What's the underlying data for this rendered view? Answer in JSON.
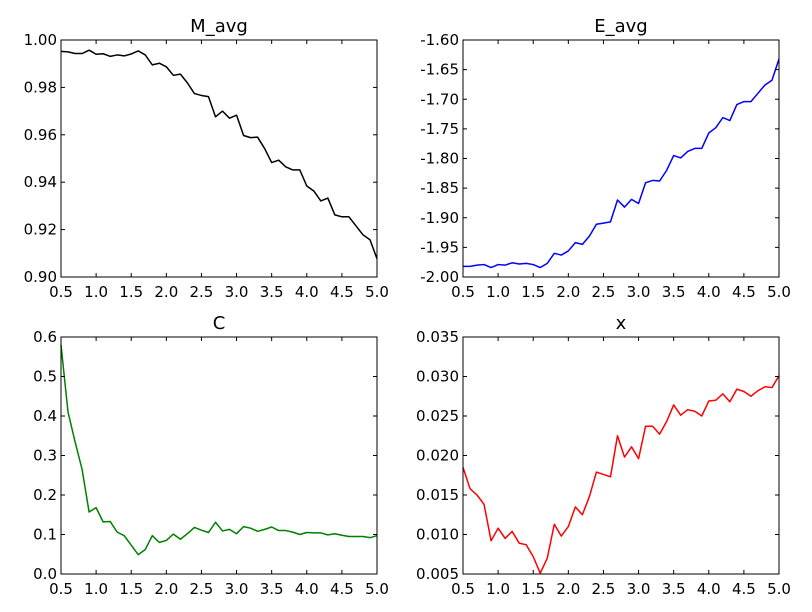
{
  "chart_data": [
    {
      "type": "line",
      "title": "M_avg",
      "xlabel": "",
      "ylabel": "",
      "xlim": [
        0.5,
        5.0
      ],
      "ylim": [
        0.9,
        1.0
      ],
      "xticks": [
        "0.5",
        "1.0",
        "1.5",
        "2.0",
        "2.5",
        "3.0",
        "3.5",
        "4.0",
        "4.5",
        "5.0"
      ],
      "yticks": [
        "0.90",
        "0.92",
        "0.94",
        "0.96",
        "0.98",
        "1.00"
      ],
      "grid": false,
      "color": "#000000",
      "series": [
        {
          "x": [
            0.5,
            0.6,
            0.7,
            0.8,
            0.9,
            1.0,
            1.1,
            1.2,
            1.3,
            1.4,
            1.5,
            1.6,
            1.7,
            1.8,
            1.9,
            2.0,
            2.1,
            2.2,
            2.3,
            2.4,
            2.5,
            2.6,
            2.7,
            2.8,
            2.9,
            3.0,
            3.1,
            3.2,
            3.3,
            3.4,
            3.5,
            3.6,
            3.7,
            3.8,
            3.9,
            4.0,
            4.1,
            4.2,
            4.3,
            4.4,
            4.5,
            4.6,
            4.7,
            4.8,
            4.9,
            5.0
          ],
          "y": [
            0.9952,
            0.995,
            0.9943,
            0.9943,
            0.9957,
            0.994,
            0.9942,
            0.9931,
            0.9937,
            0.9933,
            0.9941,
            0.9954,
            0.9937,
            0.9895,
            0.9902,
            0.9887,
            0.9851,
            0.9856,
            0.9819,
            0.9774,
            0.9766,
            0.9761,
            0.9676,
            0.97,
            0.967,
            0.9683,
            0.9597,
            0.9588,
            0.959,
            0.9542,
            0.9483,
            0.9493,
            0.9465,
            0.9452,
            0.9452,
            0.9384,
            0.9363,
            0.9321,
            0.9333,
            0.9262,
            0.9254,
            0.9254,
            0.9216,
            0.9178,
            0.9157,
            0.9077
          ]
        }
      ]
    },
    {
      "type": "line",
      "title": "E_avg",
      "xlabel": "",
      "ylabel": "",
      "xlim": [
        0.5,
        5.0
      ],
      "ylim": [
        -2.0,
        -1.6
      ],
      "xticks": [
        "0.5",
        "1.0",
        "1.5",
        "2.0",
        "2.5",
        "3.0",
        "3.5",
        "4.0",
        "4.5",
        "5.0"
      ],
      "yticks": [
        "-2.00",
        "-1.95",
        "-1.90",
        "-1.85",
        "-1.80",
        "-1.75",
        "-1.70",
        "-1.65",
        "-1.60"
      ],
      "grid": false,
      "color": "#0000ff",
      "series": [
        {
          "x": [
            0.5,
            0.6,
            0.7,
            0.8,
            0.9,
            1.0,
            1.1,
            1.2,
            1.3,
            1.4,
            1.5,
            1.6,
            1.7,
            1.8,
            1.9,
            2.0,
            2.1,
            2.2,
            2.3,
            2.4,
            2.5,
            2.6,
            2.7,
            2.8,
            2.9,
            3.0,
            3.1,
            3.2,
            3.3,
            3.4,
            3.5,
            3.6,
            3.7,
            3.8,
            3.9,
            4.0,
            4.1,
            4.2,
            4.3,
            4.4,
            4.5,
            4.6,
            4.7,
            4.8,
            4.9,
            5.0
          ],
          "y": [
            -1.982,
            -1.982,
            -1.98,
            -1.979,
            -1.984,
            -1.979,
            -1.98,
            -1.976,
            -1.978,
            -1.977,
            -1.979,
            -1.984,
            -1.977,
            -1.96,
            -1.963,
            -1.956,
            -1.942,
            -1.945,
            -1.931,
            -1.911,
            -1.909,
            -1.907,
            -1.87,
            -1.882,
            -1.869,
            -1.876,
            -1.841,
            -1.837,
            -1.838,
            -1.82,
            -1.795,
            -1.799,
            -1.788,
            -1.783,
            -1.783,
            -1.757,
            -1.748,
            -1.731,
            -1.736,
            -1.709,
            -1.704,
            -1.704,
            -1.69,
            -1.676,
            -1.668,
            -1.632
          ]
        }
      ]
    },
    {
      "type": "line",
      "title": "C",
      "xlabel": "",
      "ylabel": "",
      "xlim": [
        0.5,
        5.0
      ],
      "ylim": [
        0.0,
        0.6
      ],
      "xticks": [
        "0.5",
        "1.0",
        "1.5",
        "2.0",
        "2.5",
        "3.0",
        "3.5",
        "4.0",
        "4.5",
        "5.0"
      ],
      "yticks": [
        "0.0",
        "0.1",
        "0.2",
        "0.3",
        "0.4",
        "0.5",
        "0.6"
      ],
      "grid": false,
      "color": "#008000",
      "series": [
        {
          "x": [
            0.5,
            0.6,
            0.7,
            0.8,
            0.9,
            1.0,
            1.1,
            1.2,
            1.3,
            1.4,
            1.5,
            1.6,
            1.7,
            1.8,
            1.9,
            2.0,
            2.1,
            2.2,
            2.3,
            2.4,
            2.5,
            2.6,
            2.7,
            2.8,
            2.9,
            3.0,
            3.1,
            3.2,
            3.3,
            3.4,
            3.5,
            3.6,
            3.7,
            3.8,
            3.9,
            4.0,
            4.1,
            4.2,
            4.3,
            4.4,
            4.5,
            4.6,
            4.7,
            4.8,
            4.9,
            5.0
          ],
          "y": [
            0.58,
            0.41,
            0.335,
            0.265,
            0.157,
            0.168,
            0.132,
            0.133,
            0.106,
            0.097,
            0.073,
            0.049,
            0.062,
            0.097,
            0.08,
            0.085,
            0.101,
            0.088,
            0.102,
            0.118,
            0.111,
            0.105,
            0.131,
            0.109,
            0.113,
            0.102,
            0.12,
            0.116,
            0.108,
            0.113,
            0.119,
            0.11,
            0.11,
            0.106,
            0.1,
            0.105,
            0.104,
            0.104,
            0.099,
            0.102,
            0.098,
            0.095,
            0.095,
            0.095,
            0.092,
            0.097
          ]
        }
      ]
    },
    {
      "type": "line",
      "title": "x",
      "xlabel": "",
      "ylabel": "",
      "xlim": [
        0.5,
        5.0
      ],
      "ylim": [
        0.005,
        0.035
      ],
      "xticks": [
        "0.5",
        "1.0",
        "1.5",
        "2.0",
        "2.5",
        "3.0",
        "3.5",
        "4.0",
        "4.5",
        "5.0"
      ],
      "yticks": [
        "0.005",
        "0.010",
        "0.015",
        "0.020",
        "0.025",
        "0.030",
        "0.035"
      ],
      "grid": false,
      "color": "#ff0000",
      "series": [
        {
          "x": [
            0.5,
            0.6,
            0.7,
            0.8,
            0.9,
            1.0,
            1.1,
            1.2,
            1.3,
            1.4,
            1.5,
            1.6,
            1.7,
            1.8,
            1.9,
            2.0,
            2.1,
            2.2,
            2.3,
            2.4,
            2.5,
            2.6,
            2.7,
            2.8,
            2.9,
            3.0,
            3.1,
            3.2,
            3.3,
            3.4,
            3.5,
            3.6,
            3.7,
            3.8,
            3.9,
            4.0,
            4.1,
            4.2,
            4.3,
            4.4,
            4.5,
            4.6,
            4.7,
            4.8,
            4.9,
            5.0
          ],
          "y": [
            0.0185,
            0.0158,
            0.015,
            0.0138,
            0.0092,
            0.0108,
            0.0095,
            0.0104,
            0.0089,
            0.0087,
            0.0072,
            0.0051,
            0.007,
            0.0113,
            0.0098,
            0.011,
            0.0135,
            0.0125,
            0.0148,
            0.0179,
            0.0176,
            0.0173,
            0.0225,
            0.0198,
            0.0211,
            0.0196,
            0.0237,
            0.0237,
            0.0227,
            0.0243,
            0.0264,
            0.0251,
            0.0258,
            0.0256,
            0.025,
            0.0269,
            0.027,
            0.0278,
            0.0268,
            0.0284,
            0.0281,
            0.0275,
            0.0282,
            0.0287,
            0.0286,
            0.0301
          ]
        }
      ]
    }
  ]
}
